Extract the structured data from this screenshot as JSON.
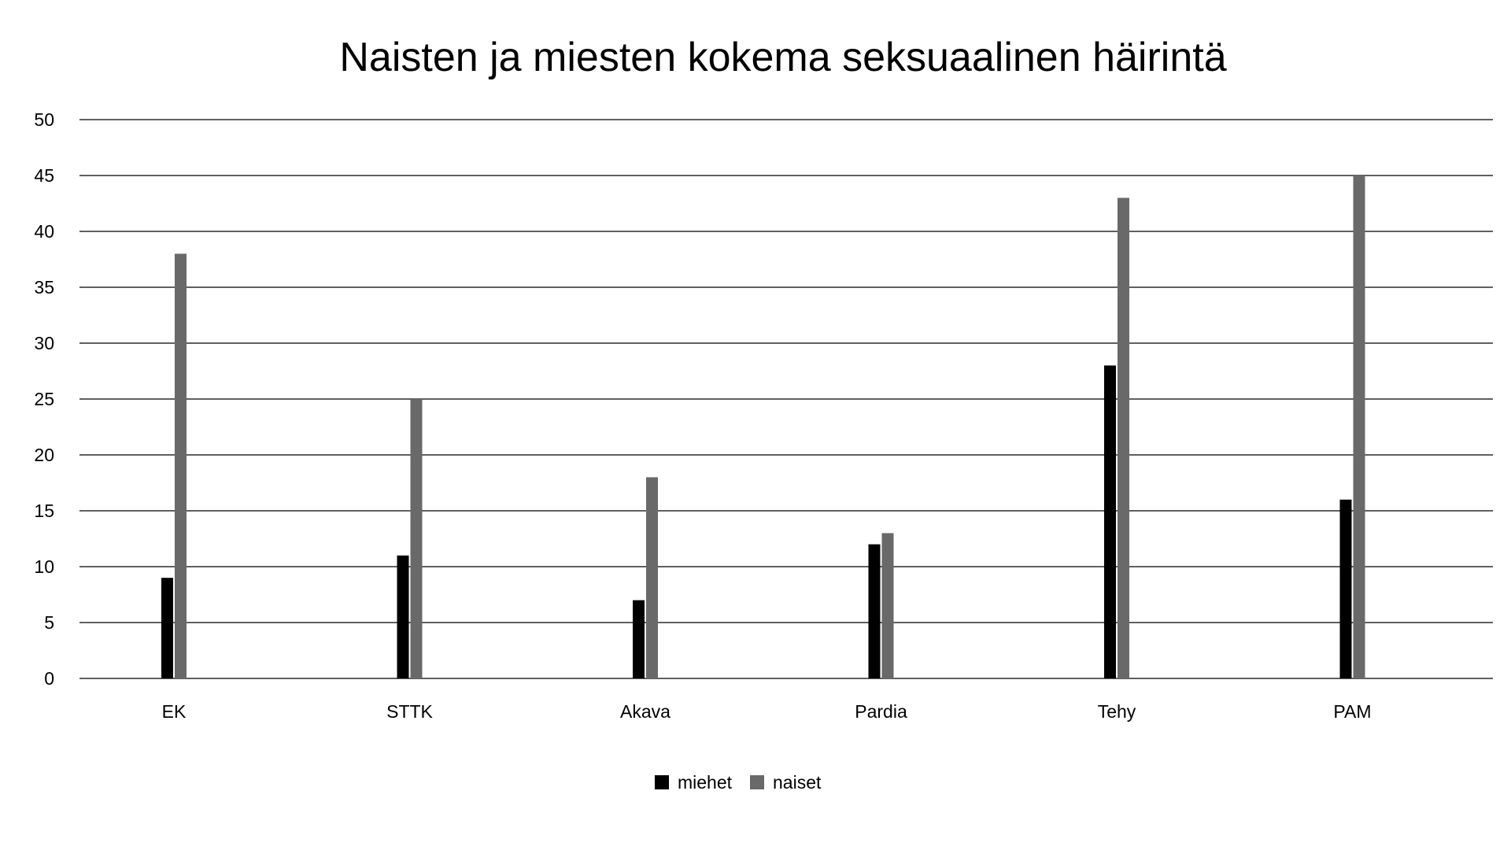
{
  "chart_data": {
    "type": "bar",
    "title": "Naisten ja miesten kokema seksuaalinen häirintä",
    "xlabel": "",
    "ylabel": "",
    "categories": [
      "EK",
      "STTK",
      "Akava",
      "Pardia",
      "Tehy",
      "PAM"
    ],
    "series": [
      {
        "name": "miehet",
        "color": "#000000",
        "values": [
          9,
          11,
          7,
          12,
          28,
          16
        ]
      },
      {
        "name": "naiset",
        "color": "#696969",
        "values": [
          38,
          25,
          18,
          13,
          43,
          45
        ]
      }
    ],
    "ylim": [
      0,
      50
    ],
    "yticks": [
      0,
      5,
      10,
      15,
      20,
      25,
      30,
      35,
      40,
      45,
      50
    ],
    "grid": true,
    "legend_position": "bottom-center"
  }
}
